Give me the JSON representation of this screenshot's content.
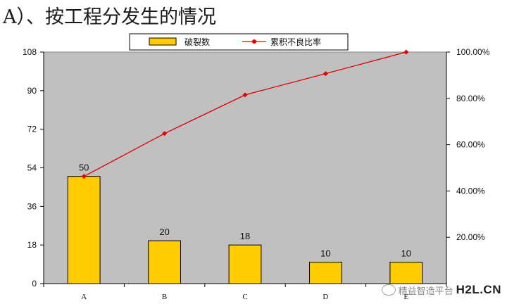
{
  "page": {
    "title": "A）、按工程分发生的情况"
  },
  "chart_data": {
    "type": "bar",
    "categories": [
      "A",
      "B",
      "C",
      "D",
      "E"
    ],
    "series": [
      {
        "name": "破裂数",
        "type": "bar",
        "axis": "left",
        "color": "#FFCC00",
        "values": [
          50,
          20,
          18,
          10,
          10
        ],
        "data_labels": [
          "50",
          "20",
          "18",
          "10",
          "10"
        ]
      },
      {
        "name": "累积不良比率",
        "type": "line",
        "axis": "right",
        "color": "#E00000",
        "values": [
          46.3,
          64.8,
          81.5,
          90.7,
          100.0
        ]
      }
    ],
    "y_left": {
      "ylim": [
        0,
        108
      ],
      "ticks": [
        "0",
        "18",
        "36",
        "54",
        "72",
        "90",
        "108"
      ]
    },
    "y_right": {
      "ylim": [
        0,
        100
      ],
      "ticks": [
        "20.00%",
        "40.00%",
        "60.00%",
        "80.00%",
        "100.00%"
      ]
    },
    "plot_background": "#C0C0C0",
    "grid": false,
    "legend_placement": "top-center"
  },
  "watermark": {
    "text": "精益智造平台",
    "brand": "H2L.CN"
  }
}
